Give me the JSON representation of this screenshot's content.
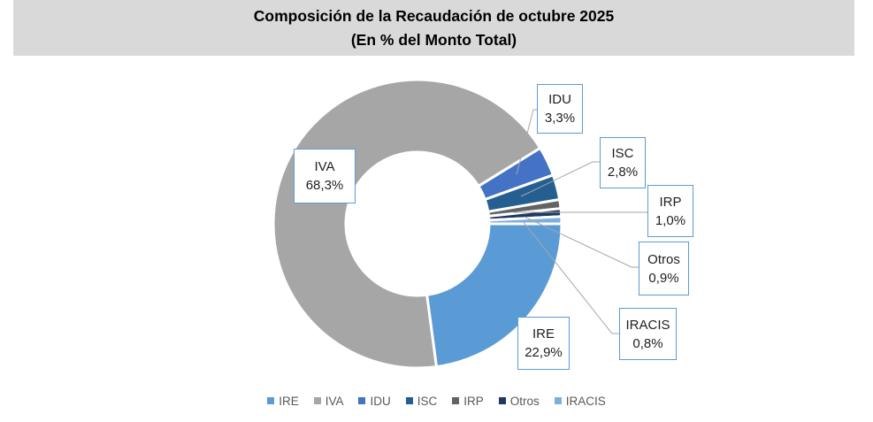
{
  "title": {
    "line1": "Composición de la Recaudación de octubre 2025",
    "line2": "(En % del Monto Total)"
  },
  "chart_data": {
    "type": "pie",
    "subtype": "donut",
    "title": "Composición de la Recaudación de octubre 2025",
    "subtitle": "(En % del Monto Total)",
    "unit": "% del monto total",
    "series": [
      {
        "name": "IRE",
        "value": 22.9,
        "label": "22,9%",
        "color": "#5B9BD5"
      },
      {
        "name": "IVA",
        "value": 68.3,
        "label": "68,3%",
        "color": "#A6A6A6"
      },
      {
        "name": "IDU",
        "value": 3.3,
        "label": "3,3%",
        "color": "#4472C4"
      },
      {
        "name": "ISC",
        "value": 2.8,
        "label": "2,8%",
        "color": "#255E91"
      },
      {
        "name": "IRP",
        "value": 1.0,
        "label": "1,0%",
        "color": "#636363"
      },
      {
        "name": "Otros",
        "value": 0.9,
        "label": "0,9%",
        "color": "#1F3864"
      },
      {
        "name": "IRACIS",
        "value": 0.8,
        "label": "0,8%",
        "color": "#7CAFDD"
      }
    ],
    "start_angle_deg": 90,
    "direction": "clockwise",
    "donut_hole_ratio": 0.5,
    "legend_position": "bottom",
    "legend": [
      "IRE",
      "IVA",
      "IDU",
      "ISC",
      "IRP",
      "Otros",
      "IRACIS"
    ],
    "colors": {
      "title_banner_bg": "#D9D9D9",
      "callout_border": "#5B9BD5",
      "leader_line": "#A6A6A6",
      "legend_text": "#595959"
    }
  }
}
